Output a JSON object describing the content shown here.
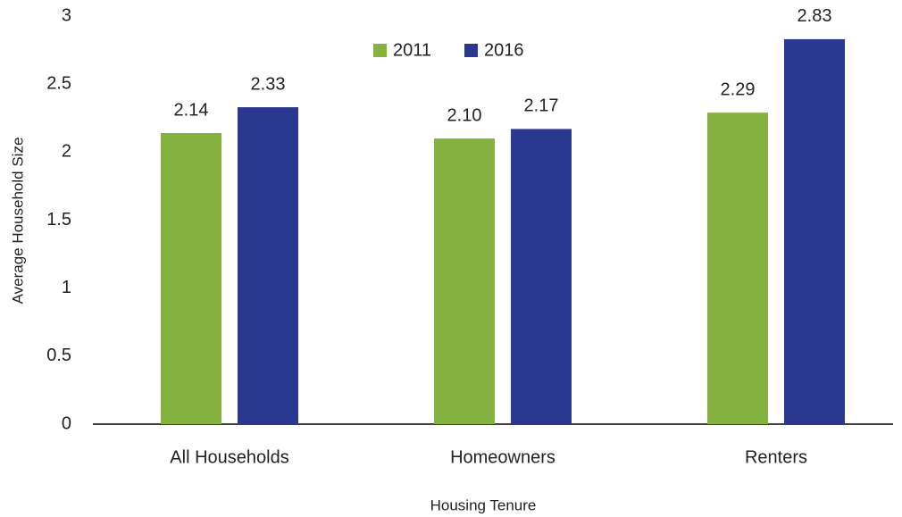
{
  "chart_data": {
    "type": "bar",
    "x_label": "Housing Tenure",
    "y_label": "Average Household Size",
    "categories": [
      "All Households",
      "Homeowners",
      "Renters"
    ],
    "series": [
      {
        "name": "2011",
        "color": "#84b140",
        "values": [
          2.14,
          2.1,
          2.29
        ],
        "value_labels": [
          "2.14",
          "2.10",
          "2.29"
        ]
      },
      {
        "name": "2016",
        "color": "#2b388f",
        "values": [
          2.33,
          2.17,
          2.83
        ],
        "value_labels": [
          "2.33",
          "2.17",
          "2.83"
        ]
      }
    ],
    "ylim": [
      0,
      3
    ],
    "yticks": [
      0,
      0.5,
      1,
      1.5,
      2,
      2.5,
      3
    ],
    "legend": "top"
  }
}
